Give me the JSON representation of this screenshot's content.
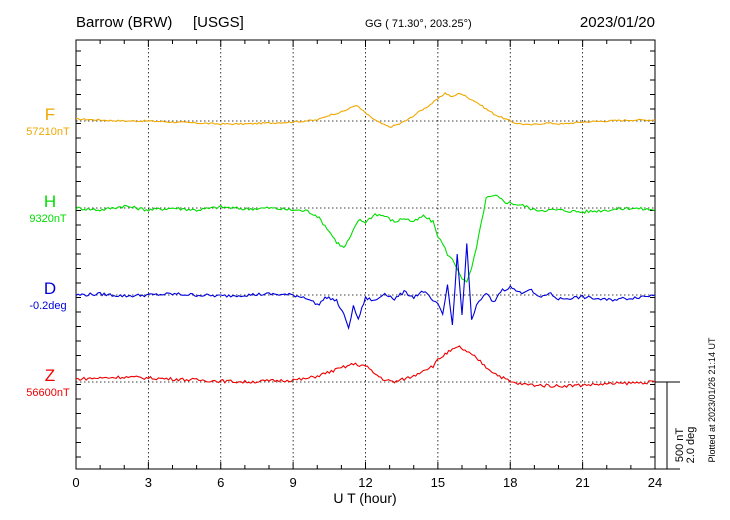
{
  "header": {
    "station": "Barrow (BRW)",
    "source": "[USGS]",
    "coords": "GG ( 71.30°, 203.25°)",
    "date": "2023/01/20"
  },
  "footer": {
    "xlabel": "U T (hour)",
    "plotted": "Plotted at 2023/01/26 21:14 UT"
  },
  "scale": {
    "nt": "500 nT",
    "deg": "2.0 deg"
  },
  "colors": {
    "F": "#f0a800",
    "H": "#00dd00",
    "D": "#0000dd",
    "Z": "#ee0000"
  },
  "chart_data": {
    "type": "line",
    "xlim": [
      0,
      24
    ],
    "x_ticks": [
      "0",
      "3",
      "6",
      "9",
      "12",
      "15",
      "18",
      "21",
      "24"
    ],
    "grid": true,
    "traces": [
      {
        "name": "F",
        "baseline": "57210nT",
        "color": "#f0a800",
        "x": [
          0,
          1,
          2,
          3,
          4,
          5,
          6,
          7,
          8,
          9,
          10,
          10.5,
          11,
          11.3,
          11.6,
          11.9,
          12.2,
          12.6,
          13,
          13.4,
          13.8,
          14.2,
          14.6,
          15,
          15.3,
          15.6,
          15.9,
          16.2,
          16.6,
          17,
          17.4,
          17.8,
          18.2,
          18.8,
          19.5,
          20.2,
          21,
          22,
          23,
          24
        ],
        "y": [
          2,
          1,
          0,
          0,
          -1,
          -2,
          -3,
          -3,
          -2,
          -1,
          1,
          6,
          9,
          12,
          16,
          10,
          4,
          -2,
          -6,
          -3,
          2,
          9,
          15,
          22,
          28,
          24,
          28,
          24,
          19,
          12,
          6,
          2,
          -2,
          -4,
          -2,
          -3,
          -1,
          0,
          1,
          1
        ]
      },
      {
        "name": "H",
        "baseline": "9320nT",
        "color": "#00dd00",
        "x": [
          0,
          1,
          2,
          3,
          4,
          5,
          6,
          7,
          8,
          9,
          9.6,
          10,
          10.4,
          10.8,
          11.1,
          11.4,
          11.7,
          12,
          12.4,
          12.8,
          13.2,
          13.6,
          14,
          14.4,
          14.8,
          15,
          15.2,
          15.4,
          15.6,
          15.8,
          16,
          16.2,
          16.4,
          16.6,
          16.8,
          17,
          17.4,
          17.8,
          18.2,
          18.6,
          19,
          20,
          21,
          22,
          23,
          24
        ],
        "y": [
          0,
          -2,
          2,
          -2,
          0,
          -2,
          1,
          -1,
          0,
          -2,
          -3,
          -8,
          -20,
          -34,
          -40,
          -28,
          -12,
          -14,
          -6,
          -8,
          -14,
          -10,
          -14,
          -8,
          -14,
          -28,
          -36,
          -46,
          -52,
          -60,
          -70,
          -75,
          -60,
          -40,
          -15,
          10,
          12,
          6,
          4,
          2,
          -2,
          -2,
          -4,
          -2,
          0,
          -2
        ]
      },
      {
        "name": "D",
        "baseline": "-0.2deg",
        "color": "#0000dd",
        "x": [
          0,
          1,
          2,
          3,
          4,
          5,
          6,
          7,
          8,
          9,
          9.6,
          10,
          10.4,
          10.8,
          11.1,
          11.3,
          11.5,
          11.7,
          12,
          12.4,
          12.8,
          13.2,
          13.6,
          14,
          14.4,
          14.8,
          15,
          15.2,
          15.4,
          15.6,
          15.8,
          16,
          16.2,
          16.4,
          16.6,
          16.8,
          17,
          17.3,
          17.6,
          18,
          18.4,
          18.8,
          19.2,
          19.6,
          20,
          21,
          22,
          23,
          24
        ],
        "y": [
          0,
          1,
          -1,
          0,
          1,
          0,
          -1,
          0,
          1,
          0,
          -3,
          -10,
          -2,
          -6,
          -20,
          -32,
          -12,
          -24,
          -3,
          -6,
          2,
          -4,
          3,
          -2,
          4,
          -6,
          -10,
          -20,
          10,
          -30,
          40,
          -20,
          50,
          -25,
          -10,
          -5,
          2,
          -8,
          4,
          8,
          2,
          6,
          -3,
          2,
          -4,
          -2,
          -5,
          -3,
          0
        ]
      },
      {
        "name": "Z",
        "baseline": "56600nT",
        "color": "#ee0000",
        "x": [
          0,
          1,
          2,
          3,
          4,
          5,
          6,
          7,
          8,
          9,
          9.5,
          10,
          10.5,
          11,
          11.5,
          12,
          12.4,
          12.8,
          13.2,
          13.6,
          14,
          14.4,
          14.8,
          15,
          15.3,
          15.6,
          15.9,
          16.2,
          16.6,
          17,
          17.4,
          17.8,
          18,
          18.4,
          19,
          20,
          21,
          22,
          23,
          24
        ],
        "y": [
          3,
          4,
          5,
          4,
          3,
          2,
          1,
          0,
          1,
          2,
          3,
          6,
          10,
          14,
          18,
          16,
          8,
          2,
          0,
          3,
          6,
          12,
          16,
          22,
          28,
          32,
          35,
          30,
          24,
          15,
          8,
          3,
          0,
          -2,
          -3,
          -4,
          -3,
          -2,
          -1,
          0
        ]
      }
    ]
  }
}
